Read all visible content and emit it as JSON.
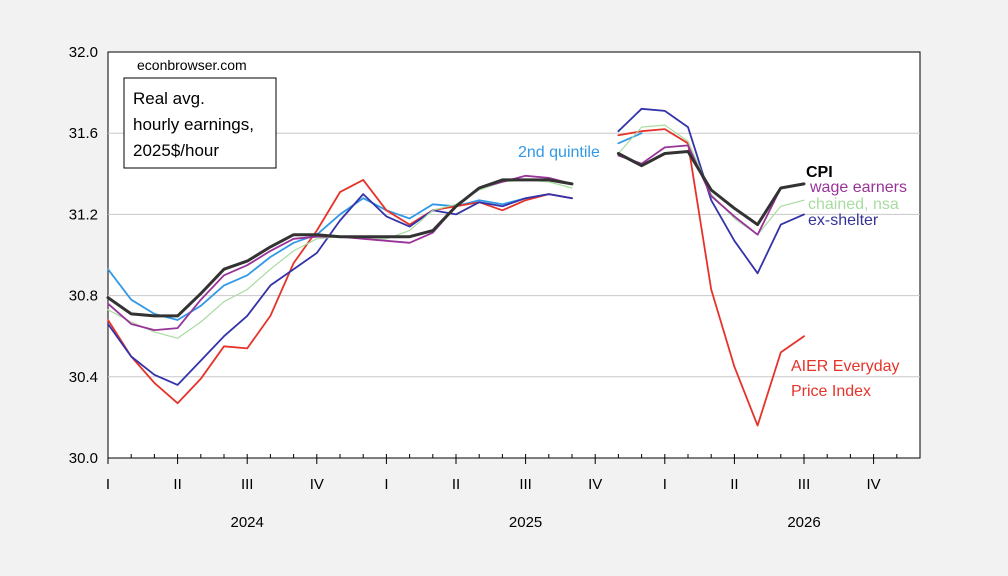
{
  "chart_data": {
    "type": "line",
    "source_note": "econbrowser.com",
    "annotation": [
      "Real avg.",
      "hourly earnings,",
      "2025$/hour"
    ],
    "ylim": [
      30.0,
      32.0
    ],
    "y_ticks": [
      "30.0",
      "30.4",
      "30.8",
      "31.2",
      "31.6",
      "32.0"
    ],
    "x_range": [
      0,
      35
    ],
    "quarter_ticks": [
      "I",
      "II",
      "III",
      "IV",
      "I",
      "II",
      "III",
      "IV",
      "I",
      "II",
      "III",
      "IV"
    ],
    "years": [
      "2024",
      "2025",
      "2026"
    ],
    "grid": true,
    "series": [
      {
        "name": "2nd quintile",
        "color": "#3399e6",
        "segments": [
          [
            [
              0,
              30.93
            ],
            [
              1,
              30.78
            ],
            [
              2,
              30.71
            ],
            [
              3,
              30.68
            ],
            [
              4,
              30.75
            ],
            [
              5,
              30.85
            ],
            [
              6,
              30.9
            ],
            [
              7,
              30.99
            ],
            [
              8,
              31.06
            ],
            [
              9,
              31.1
            ],
            [
              10,
              31.2
            ],
            [
              11,
              31.28
            ],
            [
              12,
              31.22
            ],
            [
              13,
              31.18
            ],
            [
              14,
              31.25
            ],
            [
              15,
              31.24
            ],
            [
              16,
              31.27
            ],
            [
              17,
              31.25
            ],
            [
              18,
              31.28
            ],
            [
              19,
              31.3
            ],
            [
              20,
              31.28
            ]
          ],
          [
            [
              22,
              31.55
            ],
            [
              23,
              31.6
            ]
          ]
        ]
      },
      {
        "name": "AIER Everyday Price Index",
        "color": "#e6332a",
        "segments": [
          [
            [
              0,
              30.68
            ],
            [
              1,
              30.5
            ],
            [
              2,
              30.37
            ],
            [
              3,
              30.27
            ],
            [
              4,
              30.39
            ],
            [
              5,
              30.55
            ],
            [
              6,
              30.54
            ],
            [
              7,
              30.7
            ],
            [
              8,
              30.96
            ],
            [
              9,
              31.12
            ],
            [
              10,
              31.31
            ],
            [
              11,
              31.37
            ],
            [
              12,
              31.22
            ],
            [
              13,
              31.15
            ],
            [
              14,
              31.22
            ],
            [
              15,
              31.24
            ],
            [
              16,
              31.26
            ],
            [
              17,
              31.22
            ],
            [
              18,
              31.27
            ],
            [
              19,
              31.3
            ],
            [
              20,
              31.28
            ]
          ],
          [
            [
              22,
              31.59
            ],
            [
              23,
              31.61
            ],
            [
              24,
              31.62
            ],
            [
              25,
              31.55
            ],
            [
              26,
              30.83
            ],
            [
              27,
              30.45
            ],
            [
              28,
              30.16
            ],
            [
              29,
              30.52
            ],
            [
              30,
              30.6
            ]
          ]
        ]
      },
      {
        "name": "ex-shelter",
        "color": "#3333aa",
        "segments": [
          [
            [
              0,
              30.66
            ],
            [
              1,
              30.5
            ],
            [
              2,
              30.41
            ],
            [
              3,
              30.36
            ],
            [
              4,
              30.48
            ],
            [
              5,
              30.6
            ],
            [
              6,
              30.7
            ],
            [
              7,
              30.85
            ],
            [
              8,
              30.93
            ],
            [
              9,
              31.01
            ],
            [
              10,
              31.17
            ],
            [
              11,
              31.3
            ],
            [
              12,
              31.19
            ],
            [
              13,
              31.14
            ],
            [
              14,
              31.22
            ],
            [
              15,
              31.2
            ],
            [
              16,
              31.26
            ],
            [
              17,
              31.24
            ],
            [
              18,
              31.28
            ],
            [
              19,
              31.3
            ],
            [
              20,
              31.28
            ]
          ],
          [
            [
              22,
              31.61
            ],
            [
              23,
              31.72
            ],
            [
              24,
              31.71
            ],
            [
              25,
              31.63
            ],
            [
              26,
              31.27
            ],
            [
              27,
              31.07
            ],
            [
              28,
              30.91
            ],
            [
              29,
              31.15
            ],
            [
              30,
              31.2
            ]
          ]
        ]
      },
      {
        "name": "chained, nsa",
        "color": "#a8dca0",
        "segments": [
          [
            [
              0,
              30.73
            ],
            [
              1,
              30.67
            ],
            [
              2,
              30.62
            ],
            [
              3,
              30.59
            ],
            [
              4,
              30.67
            ],
            [
              5,
              30.77
            ],
            [
              6,
              30.83
            ],
            [
              7,
              30.93
            ],
            [
              8,
              31.02
            ],
            [
              9,
              31.08
            ],
            [
              10,
              31.09
            ],
            [
              11,
              31.08
            ],
            [
              12,
              31.08
            ],
            [
              13,
              31.12
            ],
            [
              14,
              31.22
            ],
            [
              15,
              31.25
            ],
            [
              16,
              31.32
            ],
            [
              17,
              31.36
            ],
            [
              18,
              31.37
            ],
            [
              19,
              31.36
            ],
            [
              20,
              31.33
            ]
          ],
          [
            [
              22,
              31.5
            ],
            [
              23,
              31.63
            ],
            [
              24,
              31.64
            ],
            [
              25,
              31.56
            ],
            [
              26,
              31.3
            ],
            [
              27,
              31.18
            ],
            [
              28,
              31.1
            ],
            [
              29,
              31.24
            ],
            [
              30,
              31.27
            ]
          ]
        ]
      },
      {
        "name": "wage earners",
        "color": "#993399",
        "segments": [
          [
            [
              0,
              30.76
            ],
            [
              1,
              30.66
            ],
            [
              2,
              30.63
            ],
            [
              3,
              30.64
            ],
            [
              4,
              30.78
            ],
            [
              5,
              30.9
            ],
            [
              6,
              30.95
            ],
            [
              7,
              31.02
            ],
            [
              8,
              31.08
            ],
            [
              9,
              31.09
            ],
            [
              10,
              31.09
            ],
            [
              11,
              31.08
            ],
            [
              12,
              31.07
            ],
            [
              13,
              31.06
            ],
            [
              14,
              31.11
            ],
            [
              15,
              31.24
            ],
            [
              16,
              31.33
            ],
            [
              17,
              31.36
            ],
            [
              18,
              31.39
            ],
            [
              19,
              31.38
            ],
            [
              20,
              31.35
            ]
          ],
          [
            [
              22,
              31.49
            ],
            [
              23,
              31.45
            ],
            [
              24,
              31.53
            ],
            [
              25,
              31.54
            ],
            [
              26,
              31.29
            ],
            [
              27,
              31.19
            ],
            [
              28,
              31.1
            ],
            [
              29,
              31.33
            ],
            [
              30,
              31.35
            ]
          ]
        ]
      },
      {
        "name": "CPI",
        "color": "#333333",
        "bold": true,
        "segments": [
          [
            [
              0,
              30.79
            ],
            [
              1,
              30.71
            ],
            [
              2,
              30.7
            ],
            [
              3,
              30.7
            ],
            [
              4,
              30.81
            ],
            [
              5,
              30.93
            ],
            [
              6,
              30.97
            ],
            [
              7,
              31.04
            ],
            [
              8,
              31.1
            ],
            [
              9,
              31.1
            ],
            [
              10,
              31.09
            ],
            [
              11,
              31.09
            ],
            [
              12,
              31.09
            ],
            [
              13,
              31.09
            ],
            [
              14,
              31.12
            ],
            [
              15,
              31.24
            ],
            [
              16,
              31.33
            ],
            [
              17,
              31.37
            ],
            [
              18,
              31.37
            ],
            [
              19,
              31.37
            ],
            [
              20,
              31.35
            ]
          ],
          [
            [
              22,
              31.5
            ],
            [
              23,
              31.44
            ],
            [
              24,
              31.5
            ],
            [
              25,
              31.51
            ],
            [
              26,
              31.32
            ],
            [
              27,
              31.23
            ],
            [
              28,
              31.15
            ],
            [
              29,
              31.33
            ],
            [
              30,
              31.35
            ]
          ]
        ]
      }
    ],
    "labels": {
      "second_quintile": "2nd quintile",
      "cpi": "CPI",
      "wage_earners": "wage earners",
      "chained": "chained, nsa",
      "ex_shelter": "ex-shelter",
      "aier_line1": "AIER Everyday",
      "aier_line2": "Price Index"
    }
  }
}
